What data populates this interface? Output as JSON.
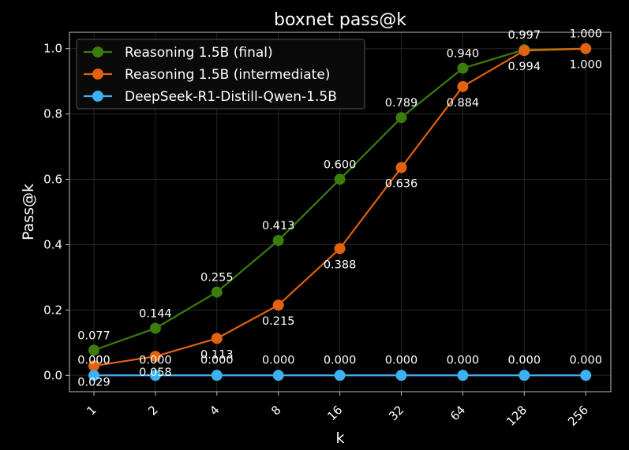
{
  "chart_data": {
    "type": "line",
    "title": "boxnet pass@k",
    "xlabel": "k",
    "ylabel": "Pass@k",
    "categories": [
      "1",
      "2",
      "4",
      "8",
      "16",
      "32",
      "64",
      "128",
      "256"
    ],
    "ylim": [
      -0.05,
      1.05
    ],
    "yticks": [
      "0.0",
      "0.2",
      "0.4",
      "0.6",
      "0.8",
      "1.0"
    ],
    "grid": true,
    "legend_position": "top-left",
    "series": [
      {
        "name": "Reasoning 1.5B (final)",
        "color": "#3a7d0a",
        "values": [
          0.077,
          0.144,
          0.255,
          0.413,
          0.6,
          0.789,
          0.94,
          0.997,
          1.0
        ],
        "labels": [
          "0.077",
          "0.144",
          "0.255",
          "0.413",
          "0.600",
          "0.789",
          "0.940",
          "0.997",
          "1.000"
        ]
      },
      {
        "name": "Reasoning 1.5B (intermediate)",
        "color": "#e2620f",
        "values": [
          0.029,
          0.058,
          0.113,
          0.215,
          0.388,
          0.636,
          0.884,
          0.994,
          1.0
        ],
        "labels": [
          "0.029",
          "0.058",
          "0.113",
          "0.215",
          "0.388",
          "0.636",
          "0.884",
          "0.994",
          "1.000"
        ]
      },
      {
        "name": "DeepSeek-R1-Distill-Qwen-1.5B",
        "color": "#3fb0f0",
        "values": [
          0.0,
          0.0,
          0.0,
          0.0,
          0.0,
          0.0,
          0.0,
          0.0,
          0.0
        ],
        "labels": [
          "0.000",
          "0.000",
          "0.000",
          "0.000",
          "0.000",
          "0.000",
          "0.000",
          "0.000",
          "0.000"
        ]
      }
    ]
  }
}
